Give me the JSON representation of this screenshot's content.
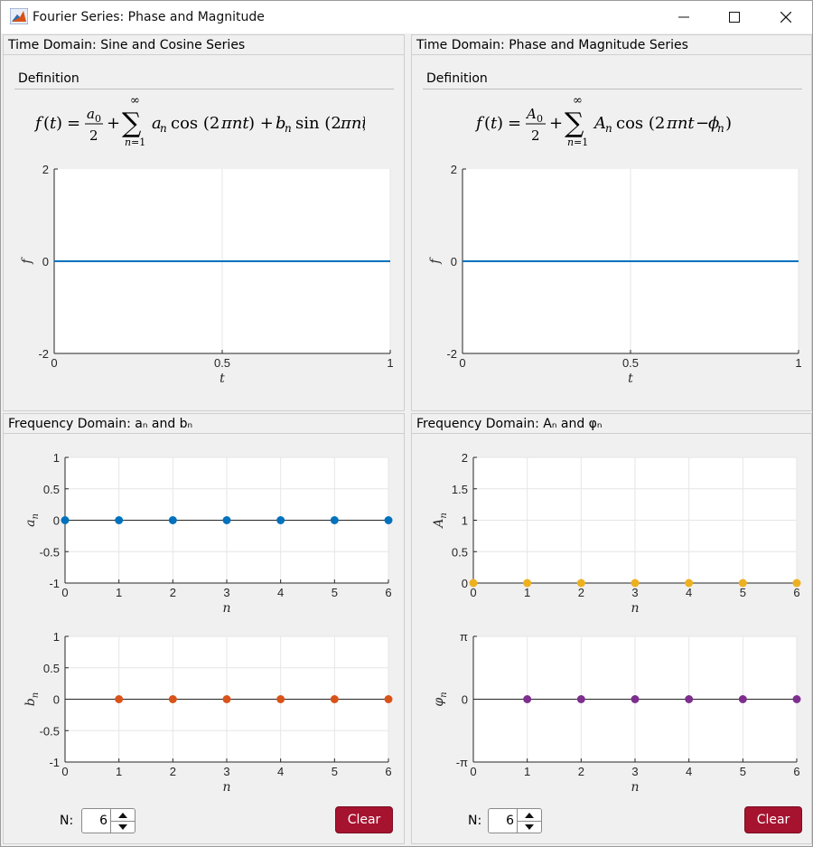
{
  "window": {
    "title": "Fourier Series: Phase and Magnitude"
  },
  "colors": {
    "accent_blue": "#0072BD",
    "accent_orange": "#D95319",
    "accent_yellow": "#EDB120",
    "accent_purple": "#7E2F8E",
    "clear_button": "#A6132F"
  },
  "left": {
    "time_title": "Time Domain: Sine and Cosine Series",
    "definition_label": "Definition",
    "freq_title": "Frequency Domain: aₙ and bₙ",
    "n_label": "N:",
    "n_value": "6",
    "clear_label": "Clear"
  },
  "right": {
    "time_title": "Time Domain: Phase and Magnitude Series",
    "definition_label": "Definition",
    "freq_title": "Frequency Domain: Aₙ and φₙ",
    "n_label": "N:",
    "n_value": "6",
    "clear_label": "Clear"
  },
  "chart_data": [
    {
      "id": "time-left",
      "type": "line",
      "xlabel": "t",
      "ylabel": "f",
      "xlim": [
        0,
        1
      ],
      "ylim": [
        -2,
        2
      ],
      "xticks": [
        "0",
        "0.5",
        "1"
      ],
      "yticks": [
        "2",
        "0",
        "-2"
      ],
      "grid": "x only",
      "series": [
        {
          "color": "#0072BD",
          "x": [
            0,
            1
          ],
          "y": [
            0,
            0
          ]
        }
      ]
    },
    {
      "id": "time-right",
      "type": "line",
      "xlabel": "t",
      "ylabel": "f",
      "xlim": [
        0,
        1
      ],
      "ylim": [
        -2,
        2
      ],
      "xticks": [
        "0",
        "0.5",
        "1"
      ],
      "yticks": [
        "2",
        "0",
        "-2"
      ],
      "grid": "x only",
      "series": [
        {
          "color": "#0072BD",
          "x": [
            0,
            1
          ],
          "y": [
            0,
            0
          ]
        }
      ]
    },
    {
      "id": "an",
      "type": "scatter",
      "xlabel": "n",
      "ylabel": "a_n",
      "xlim": [
        0,
        6
      ],
      "ylim": [
        -1,
        1
      ],
      "xticks": [
        "0",
        "1",
        "2",
        "3",
        "4",
        "5",
        "6"
      ],
      "yticks": [
        "1",
        "0.5",
        "0",
        "-0.5",
        "-1"
      ],
      "grid": true,
      "series": [
        {
          "color": "#0072BD",
          "x": [
            0,
            1,
            2,
            3,
            4,
            5,
            6
          ],
          "y": [
            0,
            0,
            0,
            0,
            0,
            0,
            0
          ]
        }
      ]
    },
    {
      "id": "bn",
      "type": "scatter",
      "xlabel": "n",
      "ylabel": "b_n",
      "xlim": [
        0,
        6
      ],
      "ylim": [
        -1,
        1
      ],
      "xticks": [
        "0",
        "1",
        "2",
        "3",
        "4",
        "5",
        "6"
      ],
      "yticks": [
        "1",
        "0.5",
        "0",
        "-0.5",
        "-1"
      ],
      "grid": true,
      "series": [
        {
          "color": "#D95319",
          "x": [
            1,
            2,
            3,
            4,
            5,
            6
          ],
          "y": [
            0,
            0,
            0,
            0,
            0,
            0
          ]
        }
      ]
    },
    {
      "id": "An",
      "type": "scatter",
      "xlabel": "n",
      "ylabel": "A_n",
      "xlim": [
        0,
        6
      ],
      "ylim": [
        0,
        2
      ],
      "xticks": [
        "0",
        "1",
        "2",
        "3",
        "4",
        "5",
        "6"
      ],
      "yticks": [
        "2",
        "1.5",
        "1",
        "0.5",
        "0"
      ],
      "grid": true,
      "series": [
        {
          "color": "#EDB120",
          "x": [
            0,
            1,
            2,
            3,
            4,
            5,
            6
          ],
          "y": [
            0,
            0,
            0,
            0,
            0,
            0,
            0
          ]
        }
      ]
    },
    {
      "id": "phin",
      "type": "scatter",
      "xlabel": "n",
      "ylabel": "φ_n",
      "xlim": [
        0,
        6
      ],
      "ylim": [
        -3.14159,
        3.14159
      ],
      "xticks": [
        "0",
        "1",
        "2",
        "3",
        "4",
        "5",
        "6"
      ],
      "yticks": [
        "π",
        "0",
        "-π"
      ],
      "grid": true,
      "series": [
        {
          "color": "#7E2F8E",
          "x": [
            1,
            2,
            3,
            4,
            5,
            6
          ],
          "y": [
            0,
            0,
            0,
            0,
            0,
            0
          ]
        }
      ]
    }
  ]
}
